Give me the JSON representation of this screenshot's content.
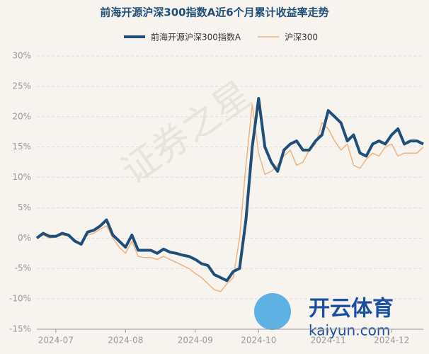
{
  "chart_data": {
    "type": "line",
    "title": "前海开源沪深300指数A近6个月累计收益率走势",
    "categories": [
      null,
      null,
      null,
      "2024-07",
      null,
      null,
      null,
      null,
      null,
      null,
      null,
      null,
      null,
      null,
      "2024-08",
      null,
      null,
      null,
      null,
      null,
      null,
      null,
      null,
      null,
      null,
      "2024-09",
      null,
      null,
      null,
      null,
      null,
      null,
      null,
      null,
      null,
      "2024-10",
      null,
      null,
      null,
      null,
      null,
      null,
      null,
      null,
      null,
      null,
      "2024-11",
      null,
      null,
      null,
      null,
      null,
      null,
      null,
      null,
      null,
      "2024-12",
      null,
      null,
      null,
      null,
      null
    ],
    "series": [
      {
        "name": "前海开源沪深300指数A",
        "color": "#1f4e79",
        "width": 4,
        "values": [
          0,
          0.8,
          0.3,
          0.3,
          0.8,
          0.5,
          -0.5,
          -1,
          1,
          1.3,
          2,
          3,
          0.5,
          -0.5,
          -1.5,
          0.5,
          -2,
          -2,
          -2,
          -2.5,
          -1.8,
          -2.3,
          -2.5,
          -2.8,
          -3,
          -3.5,
          -4.2,
          -4.5,
          -6,
          -6.5,
          -7,
          -5.5,
          -5,
          3,
          15,
          23,
          15,
          12.5,
          11,
          14.5,
          15.5,
          16,
          14.5,
          14.5,
          16,
          17,
          21,
          20,
          19,
          16,
          17,
          14,
          13.5,
          15.5,
          16,
          15.5,
          17,
          18,
          15.5,
          16,
          16,
          15.5
        ]
      },
      {
        "name": "沪深300",
        "color": "#f0b37e",
        "width": 1.5,
        "values": [
          0,
          0.5,
          0,
          0.2,
          0.5,
          0.3,
          -0.5,
          -0.8,
          0.5,
          0.8,
          1.5,
          2,
          0,
          -1.5,
          -2.5,
          -0.5,
          -3,
          -3.2,
          -3.2,
          -3.5,
          -3,
          -3.5,
          -4,
          -4.5,
          -5,
          -5.8,
          -6.5,
          -7.5,
          -8.5,
          -8.8,
          -7.5,
          -6.5,
          0,
          12,
          22,
          14,
          10.5,
          11,
          12,
          13.5,
          14.5,
          12,
          12.5,
          14.5,
          15.5,
          19,
          18,
          16,
          14.5,
          15.5,
          12,
          11.5,
          13,
          14,
          13.5,
          15,
          15.5,
          13.5,
          14,
          14,
          14,
          15
        ]
      }
    ],
    "ylim": [
      -15,
      30
    ],
    "yticks": [
      {
        "value": -15,
        "label": "-15%"
      },
      {
        "value": -10,
        "label": "-10%"
      },
      {
        "value": -5,
        "label": "-5%"
      },
      {
        "value": 0,
        "label": "0%"
      },
      {
        "value": 5,
        "label": "5%"
      },
      {
        "value": 10,
        "label": "10%"
      },
      {
        "value": 15,
        "label": "15%"
      },
      {
        "value": 20,
        "label": "20%"
      },
      {
        "value": 25,
        "label": "25%"
      },
      {
        "value": 30,
        "label": "30%"
      }
    ],
    "grid": true,
    "legend": "top",
    "watermark": "证券之星",
    "logo_text": "开云体育",
    "logo_url": "kaiyun.com"
  }
}
